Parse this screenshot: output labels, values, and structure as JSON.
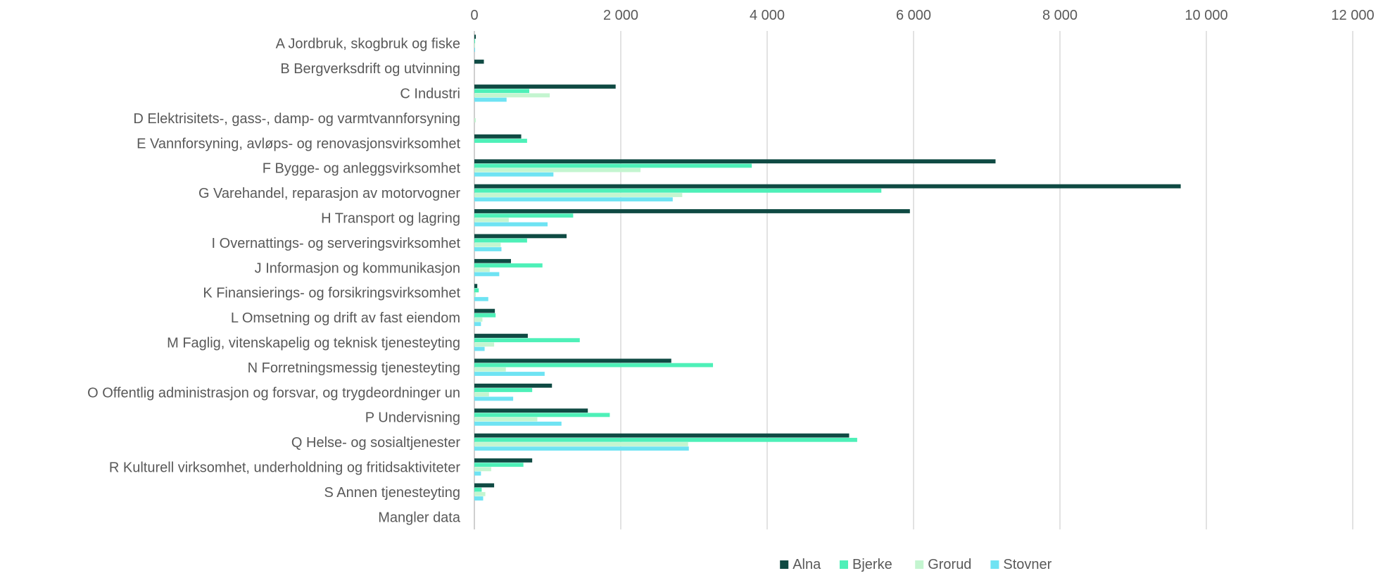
{
  "chart_data": {
    "type": "bar",
    "orientation": "horizontal",
    "title": "",
    "xlabel": "",
    "ylabel": "",
    "xlim": [
      0,
      12000
    ],
    "x_ticks": [
      0,
      2000,
      4000,
      6000,
      8000,
      10000,
      12000
    ],
    "x_tick_labels": [
      "0",
      "2 000",
      "4 000",
      "6 000",
      "8 000",
      "10 000",
      "12 000"
    ],
    "x_axis_position": "top",
    "grid": true,
    "legend_position": "bottom",
    "categories": [
      "A Jordbruk, skogbruk og fiske",
      "B Bergverksdrift og utvinning",
      "C Industri",
      "D Elektrisitets-, gass-, damp- og varmtvannforsyning",
      "E Vannforsyning, avløps- og renovasjonsvirksomhet",
      "F Bygge- og anleggsvirksomhet",
      "G Varehandel, reparasjon av motorvogner",
      "H Transport og lagring",
      "I Overnattings- og serveringsvirksomhet",
      "J Informasjon og kommunikasjon",
      "K Finansierings- og forsikringsvirksomhet",
      "L Omsetning og drift av fast eiendom",
      "M Faglig, vitenskapelig og teknisk tjenesteyting",
      "N Forretningsmessig tjenesteyting",
      "O Offentlig administrasjon og forsvar, og trygdeordninger un",
      "P Undervisning",
      "Q Helse- og sosialtjenester",
      "R Kulturell virksomhet, underholdning og fritidsaktiviteter",
      "S Annen tjenesteyting",
      "Mangler data"
    ],
    "series": [
      {
        "name": "Alna",
        "color": "#0f4a43",
        "values": [
          20,
          130,
          1930,
          0,
          640,
          7120,
          9650,
          5950,
          1260,
          500,
          40,
          280,
          730,
          2690,
          1060,
          1550,
          5120,
          790,
          270,
          0
        ]
      },
      {
        "name": "Bjerke",
        "color": "#4ef0b8",
        "values": [
          10,
          0,
          750,
          0,
          720,
          3790,
          5560,
          1350,
          720,
          930,
          60,
          290,
          1440,
          3260,
          790,
          1850,
          5230,
          670,
          100,
          0
        ]
      },
      {
        "name": "Grorud",
        "color": "#c4f5d0",
        "values": [
          10,
          0,
          1030,
          20,
          0,
          2270,
          2840,
          470,
          360,
          210,
          20,
          110,
          270,
          430,
          200,
          860,
          2920,
          230,
          150,
          0
        ]
      },
      {
        "name": "Stovner",
        "color": "#6ee3f3",
        "values": [
          10,
          0,
          440,
          0,
          0,
          1080,
          2710,
          1000,
          370,
          340,
          190,
          90,
          140,
          960,
          530,
          1190,
          2930,
          90,
          120,
          0
        ]
      }
    ]
  }
}
